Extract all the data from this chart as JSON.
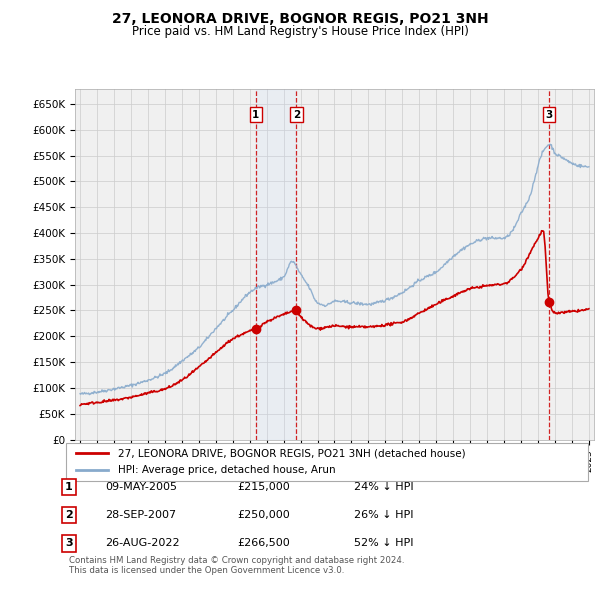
{
  "title": "27, LEONORA DRIVE, BOGNOR REGIS, PO21 3NH",
  "subtitle": "Price paid vs. HM Land Registry's House Price Index (HPI)",
  "legend_property": "27, LEONORA DRIVE, BOGNOR REGIS, PO21 3NH (detached house)",
  "legend_hpi": "HPI: Average price, detached house, Arun",
  "footer1": "Contains HM Land Registry data © Crown copyright and database right 2024.",
  "footer2": "This data is licensed under the Open Government Licence v3.0.",
  "transactions": [
    {
      "num": 1,
      "date": "09-MAY-2005",
      "price": "£215,000",
      "pct": "24% ↓ HPI",
      "year": 2005.36
    },
    {
      "num": 2,
      "date": "28-SEP-2007",
      "price": "£250,000",
      "pct": "26% ↓ HPI",
      "year": 2007.75
    },
    {
      "num": 3,
      "date": "26-AUG-2022",
      "price": "£266,500",
      "pct": "52% ↓ HPI",
      "year": 2022.65
    }
  ],
  "transaction_values": [
    215000,
    250000,
    266500
  ],
  "ylim": [
    0,
    680000
  ],
  "yticks": [
    0,
    50000,
    100000,
    150000,
    200000,
    250000,
    300000,
    350000,
    400000,
    450000,
    500000,
    550000,
    600000,
    650000
  ],
  "ytick_labels": [
    "£0",
    "£50K",
    "£100K",
    "£150K",
    "£200K",
    "£250K",
    "£300K",
    "£350K",
    "£400K",
    "£450K",
    "£500K",
    "£550K",
    "£600K",
    "£650K"
  ],
  "property_color": "#cc0000",
  "hpi_color": "#88aacc",
  "vline_color": "#cc0000",
  "bg_color": "#ffffff",
  "plot_bg": "#f0f0f0",
  "grid_color": "#cccccc",
  "highlight_bg": "#cce0ff",
  "hpi_key_years": [
    1995,
    1996,
    1997,
    1998,
    1999,
    2000,
    2001,
    2002,
    2003,
    2004,
    2005,
    2005.5,
    2006,
    2007,
    2007.5,
    2008,
    2008.5,
    2009,
    2009.5,
    2010,
    2011,
    2012,
    2013,
    2014,
    2015,
    2016,
    2017,
    2018,
    2019,
    2020,
    2020.5,
    2021,
    2021.5,
    2022,
    2022.3,
    2022.7,
    2023,
    2023.5,
    2024,
    2024.5,
    2025
  ],
  "hpi_key_vals": [
    88000,
    92000,
    98000,
    105000,
    115000,
    128000,
    152000,
    178000,
    215000,
    250000,
    285000,
    295000,
    300000,
    315000,
    345000,
    320000,
    295000,
    265000,
    260000,
    268000,
    265000,
    262000,
    270000,
    285000,
    308000,
    325000,
    355000,
    378000,
    390000,
    390000,
    405000,
    438000,
    470000,
    530000,
    558000,
    572000,
    555000,
    545000,
    535000,
    530000,
    528000
  ],
  "prop_key_years": [
    1995,
    1996,
    1997,
    1998,
    1999,
    2000,
    2001,
    2002,
    2003,
    2004,
    2005,
    2005.36,
    2006,
    2007,
    2007.75,
    2008,
    2009,
    2010,
    2011,
    2012,
    2013,
    2014,
    2015,
    2016,
    2017,
    2018,
    2019,
    2020,
    2021,
    2021.5,
    2022,
    2022.3,
    2022.65,
    2023,
    2024,
    2025
  ],
  "prop_key_vals": [
    68000,
    72000,
    76000,
    82000,
    90000,
    98000,
    115000,
    140000,
    168000,
    195000,
    210000,
    215000,
    228000,
    242000,
    250000,
    238000,
    215000,
    220000,
    218000,
    218000,
    222000,
    228000,
    245000,
    262000,
    278000,
    292000,
    298000,
    302000,
    330000,
    360000,
    390000,
    405000,
    266500,
    245000,
    248000,
    252000
  ]
}
